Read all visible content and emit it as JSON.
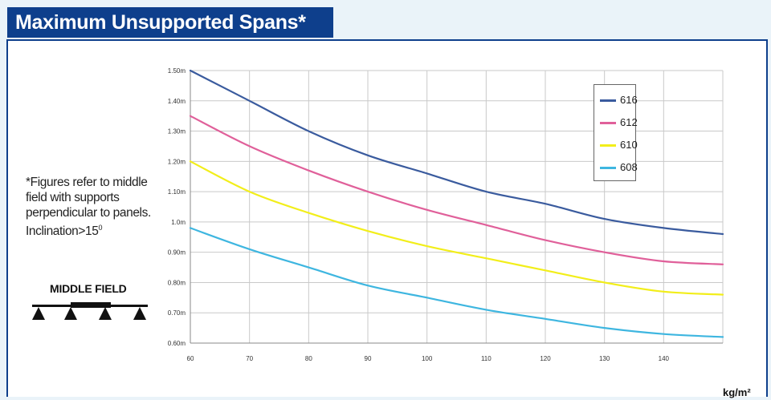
{
  "title": "Maximum Unsupported Spans*",
  "note": {
    "line1": "*Figures refer to middle",
    "line2": "field with supports",
    "line3": "perpendicular to panels.",
    "line4_prefix": "Inclination>15",
    "line4_sup": "0"
  },
  "diagram": {
    "label": "MIDDLE FIELD"
  },
  "unit_label": "kg/m²",
  "colors": {
    "title_bg": "#0e3f8c",
    "series_616": "#3a5b9e",
    "series_612": "#e0609a",
    "series_610": "#f2ee1a",
    "series_608": "#3eb6e0"
  },
  "chart_data": {
    "type": "line",
    "xlabel": "kg/m²",
    "ylabel": "",
    "xlim": [
      60,
      150
    ],
    "ylim": [
      0.6,
      1.5
    ],
    "x_ticks": [
      60,
      70,
      80,
      90,
      100,
      110,
      120,
      130,
      140
    ],
    "y_ticks": [
      {
        "value": 1.5,
        "label": "1.50m"
      },
      {
        "value": 1.4,
        "label": "1.40m"
      },
      {
        "value": 1.3,
        "label": "1.30m"
      },
      {
        "value": 1.2,
        "label": "1.20m"
      },
      {
        "value": 1.1,
        "label": "1.10m"
      },
      {
        "value": 1.0,
        "label": "1.0m"
      },
      {
        "value": 0.9,
        "label": "0.90m"
      },
      {
        "value": 0.8,
        "label": "0.80m"
      },
      {
        "value": 0.7,
        "label": "0.70m"
      },
      {
        "value": 0.6,
        "label": "0.60m"
      }
    ],
    "grid": true,
    "legend_position": "top-right",
    "x": [
      60,
      70,
      80,
      90,
      100,
      110,
      120,
      130,
      140,
      150
    ],
    "series": [
      {
        "name": "616",
        "color": "#3a5b9e",
        "values": [
          1.5,
          1.4,
          1.3,
          1.22,
          1.16,
          1.1,
          1.06,
          1.01,
          0.98,
          0.96
        ]
      },
      {
        "name": "612",
        "color": "#e0609a",
        "values": [
          1.35,
          1.25,
          1.17,
          1.1,
          1.04,
          0.99,
          0.94,
          0.9,
          0.87,
          0.86
        ]
      },
      {
        "name": "610",
        "color": "#f2ee1a",
        "values": [
          1.2,
          1.1,
          1.03,
          0.97,
          0.92,
          0.88,
          0.84,
          0.8,
          0.77,
          0.76
        ]
      },
      {
        "name": "608",
        "color": "#3eb6e0",
        "values": [
          0.98,
          0.91,
          0.85,
          0.79,
          0.75,
          0.71,
          0.68,
          0.65,
          0.63,
          0.62
        ]
      }
    ]
  }
}
